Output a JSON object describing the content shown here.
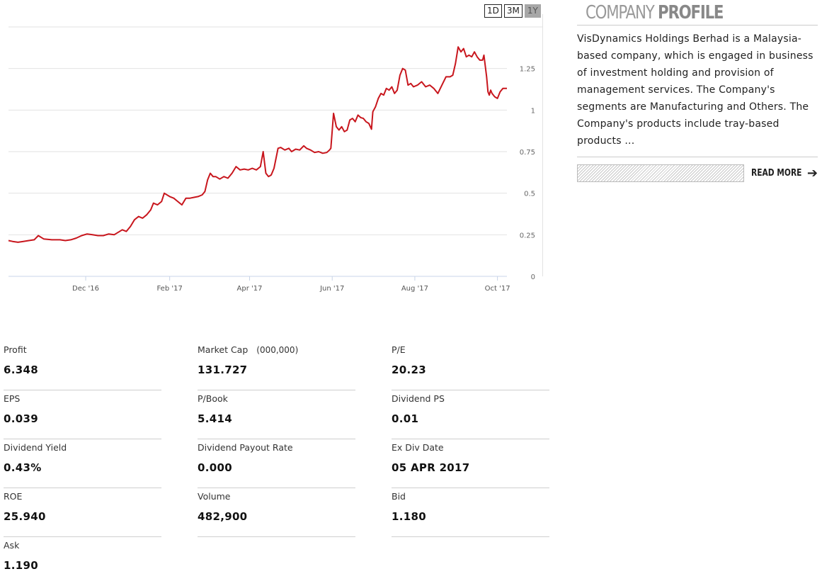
{
  "range_buttons": [
    {
      "label": "1D",
      "active": false
    },
    {
      "label": "3M",
      "active": false
    },
    {
      "label": "1Y",
      "active": true
    }
  ],
  "chart_data": {
    "type": "line",
    "title": "",
    "xlabel": "",
    "ylabel": "",
    "ylim": [
      0,
      1.5
    ],
    "y_ticks": [
      0,
      0.25,
      0.5,
      0.75,
      1,
      1.25
    ],
    "y_tick_labels": [
      "0",
      "0.25",
      "0.5",
      "0.75",
      "1",
      "1.25"
    ],
    "x_ticks": [
      {
        "label": "Dec '16",
        "date": "2016-12-01"
      },
      {
        "label": "Feb '17",
        "date": "2017-02-01"
      },
      {
        "label": "Apr '17",
        "date": "2017-04-01"
      },
      {
        "label": "Jun '17",
        "date": "2017-06-01"
      },
      {
        "label": "Aug '17",
        "date": "2017-08-01"
      },
      {
        "label": "Oct '17",
        "date": "2017-10-01"
      }
    ],
    "x_range": [
      "2016-10-05",
      "2017-10-08"
    ],
    "grid": true,
    "color": "#c8161d",
    "series": [
      {
        "name": "",
        "points": [
          [
            "2016-10-05",
            0.215
          ],
          [
            "2016-10-08",
            0.21
          ],
          [
            "2016-10-12",
            0.205
          ],
          [
            "2016-10-16",
            0.21
          ],
          [
            "2016-10-20",
            0.215
          ],
          [
            "2016-10-24",
            0.22
          ],
          [
            "2016-10-27",
            0.245
          ],
          [
            "2016-10-31",
            0.225
          ],
          [
            "2016-11-06",
            0.22
          ],
          [
            "2016-11-12",
            0.22
          ],
          [
            "2016-11-16",
            0.215
          ],
          [
            "2016-11-20",
            0.22
          ],
          [
            "2016-11-24",
            0.23
          ],
          [
            "2016-11-28",
            0.245
          ],
          [
            "2016-12-02",
            0.255
          ],
          [
            "2016-12-06",
            0.25
          ],
          [
            "2016-12-10",
            0.245
          ],
          [
            "2016-12-14",
            0.245
          ],
          [
            "2016-12-18",
            0.255
          ],
          [
            "2016-12-22",
            0.25
          ],
          [
            "2016-12-25",
            0.265
          ],
          [
            "2016-12-28",
            0.28
          ],
          [
            "2016-12-31",
            0.27
          ],
          [
            "2017-01-03",
            0.3
          ],
          [
            "2017-01-06",
            0.34
          ],
          [
            "2017-01-09",
            0.36
          ],
          [
            "2017-01-12",
            0.35
          ],
          [
            "2017-01-15",
            0.37
          ],
          [
            "2017-01-18",
            0.4
          ],
          [
            "2017-01-20",
            0.44
          ],
          [
            "2017-01-23",
            0.43
          ],
          [
            "2017-01-26",
            0.45
          ],
          [
            "2017-01-28",
            0.5
          ],
          [
            "2017-02-01",
            0.48
          ],
          [
            "2017-02-04",
            0.47
          ],
          [
            "2017-02-07",
            0.45
          ],
          [
            "2017-02-10",
            0.43
          ],
          [
            "2017-02-13",
            0.47
          ],
          [
            "2017-02-16",
            0.47
          ],
          [
            "2017-02-19",
            0.475
          ],
          [
            "2017-02-22",
            0.48
          ],
          [
            "2017-02-25",
            0.49
          ],
          [
            "2017-02-27",
            0.51
          ],
          [
            "2017-03-01",
            0.58
          ],
          [
            "2017-03-03",
            0.62
          ],
          [
            "2017-03-05",
            0.6
          ],
          [
            "2017-03-07",
            0.6
          ],
          [
            "2017-03-10",
            0.585
          ],
          [
            "2017-03-13",
            0.6
          ],
          [
            "2017-03-16",
            0.59
          ],
          [
            "2017-03-19",
            0.62
          ],
          [
            "2017-03-22",
            0.66
          ],
          [
            "2017-03-25",
            0.64
          ],
          [
            "2017-03-28",
            0.645
          ],
          [
            "2017-03-31",
            0.64
          ],
          [
            "2017-04-03",
            0.65
          ],
          [
            "2017-04-06",
            0.64
          ],
          [
            "2017-04-09",
            0.66
          ],
          [
            "2017-04-11",
            0.75
          ],
          [
            "2017-04-13",
            0.62
          ],
          [
            "2017-04-15",
            0.6
          ],
          [
            "2017-04-17",
            0.61
          ],
          [
            "2017-04-19",
            0.65
          ],
          [
            "2017-04-22",
            0.77
          ],
          [
            "2017-04-24",
            0.775
          ],
          [
            "2017-04-27",
            0.76
          ],
          [
            "2017-04-30",
            0.77
          ],
          [
            "2017-05-02",
            0.75
          ],
          [
            "2017-05-05",
            0.765
          ],
          [
            "2017-05-08",
            0.76
          ],
          [
            "2017-05-11",
            0.785
          ],
          [
            "2017-05-13",
            0.77
          ],
          [
            "2017-05-16",
            0.76
          ],
          [
            "2017-05-19",
            0.745
          ],
          [
            "2017-05-22",
            0.75
          ],
          [
            "2017-05-25",
            0.74
          ],
          [
            "2017-05-28",
            0.745
          ],
          [
            "2017-05-30",
            0.76
          ],
          [
            "2017-05-31",
            0.77
          ],
          [
            "2017-06-02",
            0.98
          ],
          [
            "2017-06-04",
            0.9
          ],
          [
            "2017-06-06",
            0.88
          ],
          [
            "2017-06-08",
            0.9
          ],
          [
            "2017-06-10",
            0.87
          ],
          [
            "2017-06-12",
            0.88
          ],
          [
            "2017-06-14",
            0.94
          ],
          [
            "2017-06-16",
            0.95
          ],
          [
            "2017-06-18",
            0.93
          ],
          [
            "2017-06-20",
            0.97
          ],
          [
            "2017-06-22",
            0.955
          ],
          [
            "2017-06-24",
            0.95
          ],
          [
            "2017-06-26",
            0.93
          ],
          [
            "2017-06-28",
            0.92
          ],
          [
            "2017-06-30",
            0.885
          ],
          [
            "2017-07-01",
            0.99
          ],
          [
            "2017-07-03",
            1.02
          ],
          [
            "2017-07-05",
            1.07
          ],
          [
            "2017-07-07",
            1.1
          ],
          [
            "2017-07-09",
            1.09
          ],
          [
            "2017-07-11",
            1.13
          ],
          [
            "2017-07-13",
            1.12
          ],
          [
            "2017-07-15",
            1.14
          ],
          [
            "2017-07-17",
            1.1
          ],
          [
            "2017-07-19",
            1.12
          ],
          [
            "2017-07-21",
            1.21
          ],
          [
            "2017-07-23",
            1.25
          ],
          [
            "2017-07-25",
            1.24
          ],
          [
            "2017-07-27",
            1.15
          ],
          [
            "2017-07-29",
            1.16
          ],
          [
            "2017-07-31",
            1.14
          ],
          [
            "2017-08-03",
            1.15
          ],
          [
            "2017-08-06",
            1.17
          ],
          [
            "2017-08-09",
            1.14
          ],
          [
            "2017-08-12",
            1.15
          ],
          [
            "2017-08-15",
            1.13
          ],
          [
            "2017-08-18",
            1.1
          ],
          [
            "2017-08-21",
            1.15
          ],
          [
            "2017-08-24",
            1.2
          ],
          [
            "2017-08-27",
            1.2
          ],
          [
            "2017-08-29",
            1.21
          ],
          [
            "2017-08-31",
            1.28
          ],
          [
            "2017-09-02",
            1.38
          ],
          [
            "2017-09-04",
            1.35
          ],
          [
            "2017-09-06",
            1.37
          ],
          [
            "2017-09-08",
            1.32
          ],
          [
            "2017-09-10",
            1.33
          ],
          [
            "2017-09-12",
            1.32
          ],
          [
            "2017-09-14",
            1.35
          ],
          [
            "2017-09-16",
            1.32
          ],
          [
            "2017-09-18",
            1.3
          ],
          [
            "2017-09-20",
            1.3
          ],
          [
            "2017-09-21",
            1.33
          ],
          [
            "2017-09-23",
            1.2
          ],
          [
            "2017-09-24",
            1.11
          ],
          [
            "2017-09-25",
            1.09
          ],
          [
            "2017-09-26",
            1.12
          ],
          [
            "2017-09-27",
            1.1
          ],
          [
            "2017-09-29",
            1.08
          ],
          [
            "2017-10-01",
            1.07
          ],
          [
            "2017-10-03",
            1.11
          ],
          [
            "2017-10-05",
            1.13
          ],
          [
            "2017-10-08",
            1.13
          ]
        ]
      }
    ]
  },
  "profile": {
    "title_light": "COMPANY",
    "title_bold": "PROFILE",
    "description": "VisDynamics Holdings Berhad is a Malaysia-based company, which is engaged in business of investment holding and provision of management services. The Company's segments are Manufacturing and Others. The Company's products include tray-based products ...",
    "read_more": "READ MORE"
  },
  "metrics": [
    {
      "label": "Profit",
      "value": "6.348"
    },
    {
      "label": "Market Cap",
      "unit": "(000,000)",
      "value": "131.727"
    },
    {
      "label": "P/E",
      "value": "20.23"
    },
    {
      "label": "EPS",
      "value": "0.039"
    },
    {
      "label": "P/Book",
      "value": "5.414"
    },
    {
      "label": "Dividend PS",
      "value": "0.01"
    },
    {
      "label": "Dividend Yield",
      "value": "0.43%"
    },
    {
      "label": "Dividend Payout Rate",
      "value": "0.000"
    },
    {
      "label": "Ex Div Date",
      "value": "05 APR 2017"
    },
    {
      "label": "ROE",
      "value": "25.940"
    },
    {
      "label": "Volume",
      "value": "482,900"
    },
    {
      "label": "Bid",
      "value": "1.180"
    },
    {
      "label": "Ask",
      "value": "1.190"
    }
  ]
}
